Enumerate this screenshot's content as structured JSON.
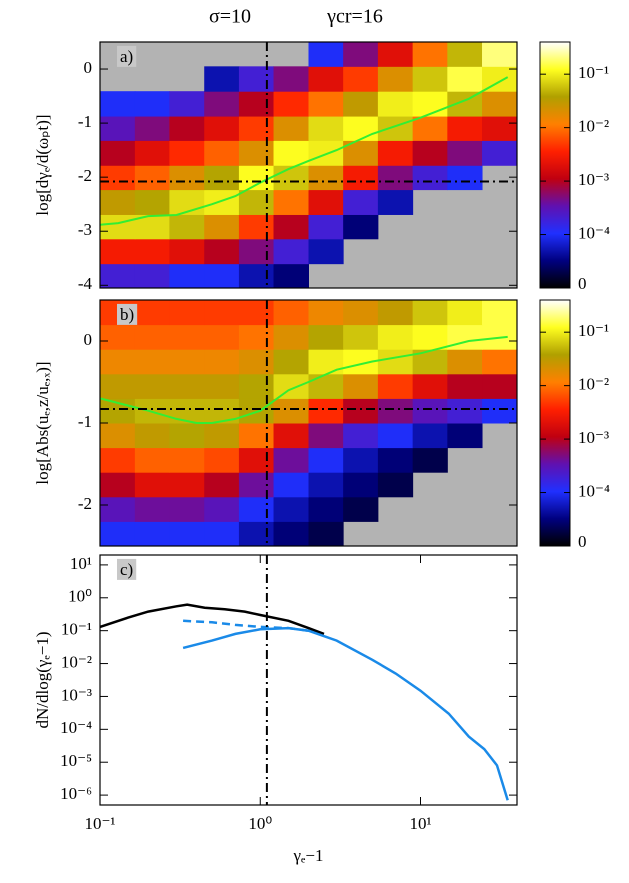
{
  "chart_data": [
    {
      "type": "heatmap",
      "titles": [
        "σ=10",
        "γcr=16"
      ],
      "label": "a)",
      "ylabel": "log[dγₑ/d(ωₚt)]",
      "xlog": true,
      "xlim": [
        0.1,
        40
      ],
      "ylim": [
        -4.05,
        0.5
      ],
      "yticks": [
        0,
        -1,
        -2,
        -3,
        -4
      ],
      "vline": 1.1,
      "hline": -2.08,
      "x_edges": [
        0.1,
        0.165,
        0.271,
        0.447,
        0.736,
        1.21,
        2.0,
        3.29,
        5.42,
        8.93,
        14.7,
        24.2,
        40
      ],
      "y_edges": [
        -4.05,
        -3.6,
        -3.14,
        -2.69,
        -2.23,
        -1.78,
        -1.32,
        -0.87,
        -0.41,
        0.05,
        0.5
      ],
      "z": [
        [
          0.0002,
          0.0002,
          0.0001,
          0.0001,
          5e-05,
          3e-05,
          null,
          null,
          null,
          null,
          null,
          null
        ],
        [
          0.003,
          0.003,
          0.002,
          0.001,
          0.0005,
          0.0002,
          5e-05,
          null,
          null,
          null,
          null,
          null
        ],
        [
          0.08,
          0.08,
          0.05,
          0.02,
          0.005,
          0.001,
          0.0002,
          3e-05,
          null,
          null,
          null,
          null
        ],
        [
          0.03,
          0.04,
          0.08,
          0.1,
          0.05,
          0.01,
          0.002,
          0.0002,
          5e-05,
          null,
          null,
          null
        ],
        [
          0.005,
          0.008,
          0.02,
          0.04,
          0.12,
          0.06,
          0.02,
          0.003,
          0.0005,
          0.0002,
          0.0001,
          null
        ],
        [
          0.001,
          0.002,
          0.004,
          0.008,
          0.02,
          0.12,
          0.1,
          0.02,
          0.003,
          0.001,
          0.0005,
          0.0002
        ],
        [
          0.0003,
          0.0005,
          0.001,
          0.002,
          0.005,
          0.02,
          0.08,
          0.12,
          0.06,
          0.01,
          0.003,
          0.002
        ],
        [
          0.0001,
          0.0001,
          0.0002,
          0.0005,
          0.001,
          0.004,
          0.01,
          0.03,
          0.1,
          0.12,
          0.05,
          0.02
        ],
        [
          null,
          null,
          null,
          5e-05,
          0.0002,
          0.0005,
          0.002,
          0.005,
          0.02,
          0.06,
          0.15,
          0.1
        ],
        [
          null,
          null,
          null,
          null,
          null,
          null,
          0.0001,
          0.0005,
          0.002,
          0.01,
          0.05,
          0.2
        ]
      ],
      "clim": [
        1e-05,
        0.4
      ],
      "cticks": [
        {
          "value": 0.1,
          "label": "10⁻¹"
        },
        {
          "value": 0.01,
          "label": "10⁻²"
        },
        {
          "value": 0.001,
          "label": "10⁻³"
        },
        {
          "value": 0.0001,
          "label": "10⁻⁴"
        },
        0
      ],
      "colormap": [
        "#000000",
        "#000080",
        "#2030ff",
        "#6010b0",
        "#c00010",
        "#ff2000",
        "#ff8000",
        "#b0a000",
        "#ffff20",
        "#ffffff"
      ],
      "lines": [
        {
          "color": "#33ee33",
          "x": [
            0.1,
            0.13,
            0.2,
            0.3,
            0.5,
            0.7,
            1.0,
            1.5,
            2,
            3,
            5,
            10,
            20,
            35
          ],
          "y": [
            -2.88,
            -2.85,
            -2.72,
            -2.7,
            -2.5,
            -2.35,
            -2.1,
            -1.85,
            -1.7,
            -1.5,
            -1.2,
            -0.9,
            -0.55,
            -0.15
          ]
        }
      ]
    },
    {
      "type": "heatmap",
      "label": "b)",
      "ylabel": "log[Abs(uₑ,z/uₑ,ₓ)]",
      "xlog": true,
      "xlim": [
        0.1,
        40
      ],
      "ylim": [
        -2.5,
        0.5
      ],
      "yticks": [
        0,
        -1,
        -2
      ],
      "vline": 1.1,
      "hline": -0.83,
      "x_edges": [
        0.1,
        0.165,
        0.271,
        0.447,
        0.736,
        1.21,
        2.0,
        3.29,
        5.42,
        8.93,
        14.7,
        24.2,
        40
      ],
      "y_edges": [
        -2.5,
        -2.2,
        -1.9,
        -1.6,
        -1.3,
        -1.0,
        -0.7,
        -0.4,
        -0.1,
        0.2,
        0.5
      ],
      "z": [
        [
          0.0001,
          0.0001,
          0.0001,
          0.0001,
          5e-05,
          3e-05,
          2e-05,
          null,
          null,
          null,
          null,
          null
        ],
        [
          0.0003,
          0.0004,
          0.0004,
          0.0003,
          0.0001,
          5e-05,
          3e-05,
          2e-05,
          null,
          null,
          null,
          null
        ],
        [
          0.001,
          0.002,
          0.002,
          0.001,
          0.0004,
          0.0001,
          5e-05,
          3e-05,
          2e-05,
          null,
          null,
          null
        ],
        [
          0.005,
          0.008,
          0.008,
          0.006,
          0.002,
          0.0004,
          0.0001,
          5e-05,
          3e-05,
          2e-05,
          null,
          null
        ],
        [
          0.02,
          0.03,
          0.04,
          0.03,
          0.01,
          0.002,
          0.0005,
          0.0002,
          0.0001,
          5e-05,
          3e-05,
          null
        ],
        [
          0.04,
          0.05,
          0.05,
          0.05,
          0.04,
          0.02,
          0.004,
          0.001,
          0.0005,
          0.0003,
          0.0002,
          0.0001
        ],
        [
          0.03,
          0.03,
          0.03,
          0.03,
          0.04,
          0.08,
          0.05,
          0.02,
          0.005,
          0.002,
          0.001,
          0.001
        ],
        [
          0.015,
          0.015,
          0.015,
          0.015,
          0.02,
          0.04,
          0.1,
          0.12,
          0.08,
          0.05,
          0.02,
          0.01
        ],
        [
          0.008,
          0.008,
          0.008,
          0.008,
          0.01,
          0.02,
          0.04,
          0.06,
          0.1,
          0.12,
          0.15,
          0.15
        ],
        [
          0.005,
          0.005,
          0.005,
          0.005,
          0.005,
          0.008,
          0.015,
          0.02,
          0.03,
          0.06,
          0.1,
          0.15
        ]
      ],
      "clim": [
        1e-05,
        0.4
      ],
      "cticks": [
        {
          "value": 0.1,
          "label": "10⁻¹"
        },
        {
          "value": 0.01,
          "label": "10⁻²"
        },
        {
          "value": 0.001,
          "label": "10⁻³"
        },
        {
          "value": 0.0001,
          "label": "10⁻⁴"
        },
        0
      ],
      "colormap": [
        "#000000",
        "#000080",
        "#2030ff",
        "#6010b0",
        "#c00010",
        "#ff2000",
        "#ff8000",
        "#b0a000",
        "#ffff20",
        "#ffffff"
      ],
      "lines": [
        {
          "color": "#33ee33",
          "x": [
            0.1,
            0.2,
            0.3,
            0.4,
            0.5,
            0.7,
            1.0,
            1.5,
            2,
            3,
            5,
            10,
            20,
            35
          ],
          "y": [
            -0.7,
            -0.85,
            -0.95,
            -1.0,
            -1.0,
            -0.95,
            -0.85,
            -0.6,
            -0.5,
            -0.35,
            -0.25,
            -0.15,
            0.0,
            0.05
          ]
        }
      ]
    },
    {
      "type": "line",
      "label": "c)",
      "ylabel": "dN/dlog(γₑ−1)",
      "xlabel": "γₑ−1",
      "xlog": true,
      "ylog": true,
      "xlim": [
        0.1,
        40
      ],
      "ylim": [
        5e-07,
        20
      ],
      "vline": 1.1,
      "xticks": [
        {
          "value": 0.1,
          "label": "10⁻¹"
        },
        {
          "value": 1,
          "label": "10⁰"
        },
        {
          "value": 10,
          "label": "10¹"
        }
      ],
      "yticks": [
        {
          "value": 10,
          "label": "10¹"
        },
        {
          "value": 1,
          "label": "10⁰"
        },
        {
          "value": 0.1,
          "label": "10⁻¹"
        },
        {
          "value": 0.01,
          "label": "10⁻²"
        },
        {
          "value": 0.001,
          "label": "10⁻³"
        },
        {
          "value": 0.0001,
          "label": "10⁻⁴"
        },
        {
          "value": 1e-05,
          "label": "10⁻⁵"
        },
        {
          "value": 1e-06,
          "label": "10⁻⁶"
        }
      ],
      "lines": [
        {
          "color": "#000000",
          "dash": false,
          "x": [
            0.1,
            0.15,
            0.2,
            0.3,
            0.35,
            0.45,
            0.6,
            0.8,
            1,
            1.5,
            2,
            2.5
          ],
          "y": [
            0.13,
            0.25,
            0.38,
            0.55,
            0.62,
            0.5,
            0.45,
            0.38,
            0.3,
            0.2,
            0.12,
            0.08
          ]
        },
        {
          "color": "#1a8ae8",
          "dash": true,
          "x": [
            0.33,
            0.5,
            0.7,
            1,
            1.5,
            2
          ],
          "y": [
            0.2,
            0.18,
            0.15,
            0.13,
            0.12,
            0.1
          ]
        },
        {
          "color": "#1a8ae8",
          "dash": false,
          "x": [
            0.33,
            0.5,
            0.7,
            1,
            1.5,
            2,
            3,
            5,
            7,
            10,
            15,
            20,
            25,
            30,
            35
          ],
          "y": [
            0.03,
            0.05,
            0.08,
            0.11,
            0.12,
            0.1,
            0.05,
            0.013,
            0.005,
            0.0015,
            0.0003,
            6e-05,
            2.5e-05,
            8e-06,
            7e-07
          ]
        }
      ]
    }
  ]
}
